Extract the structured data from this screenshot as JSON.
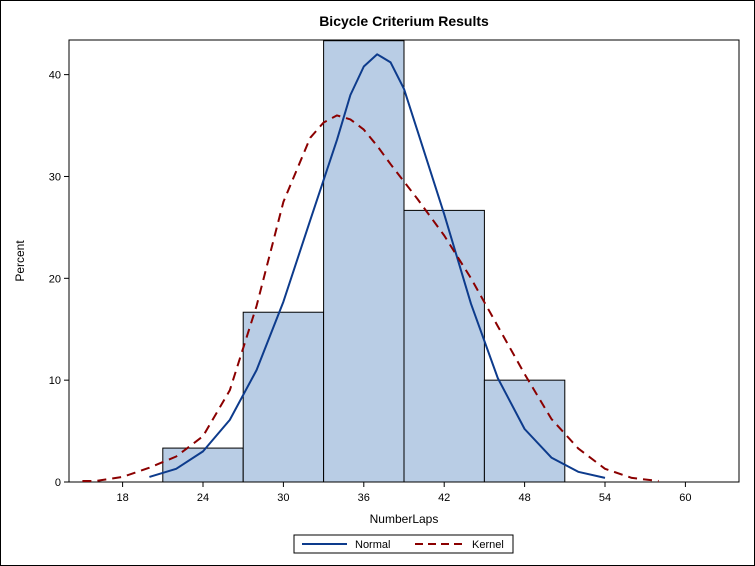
{
  "chart_data": {
    "type": "bar",
    "title": "Bicycle Criterium Results",
    "xlabel": "NumberLaps",
    "ylabel": "Percent",
    "xlim": [
      14,
      64
    ],
    "ylim": [
      0,
      43.4
    ],
    "x_ticks": [
      18,
      24,
      30,
      36,
      42,
      48,
      54,
      60
    ],
    "y_ticks": [
      0,
      10,
      20,
      30,
      40
    ],
    "bins": [
      {
        "x0": 21,
        "x1": 27,
        "value": 3.33
      },
      {
        "x0": 27,
        "x1": 33,
        "value": 16.67
      },
      {
        "x0": 33,
        "x1": 39,
        "value": 43.33
      },
      {
        "x0": 39,
        "x1": 45,
        "value": 26.67
      },
      {
        "x0": 45,
        "x1": 51,
        "value": 10.0
      }
    ],
    "bar_color": "#b9cde5",
    "series": [
      {
        "name": "Normal",
        "color": "#0d3b8c",
        "style": "solid",
        "x": [
          20,
          22,
          24,
          26,
          28,
          30,
          32,
          34,
          35,
          36,
          37,
          38,
          39,
          40,
          42,
          44,
          46,
          48,
          50,
          52,
          54
        ],
        "y": [
          0.5,
          1.3,
          3.0,
          6.1,
          11.0,
          17.7,
          25.7,
          33.6,
          38.0,
          40.8,
          42.0,
          41.2,
          38.6,
          34.5,
          26.3,
          17.5,
          10.2,
          5.2,
          2.4,
          1.0,
          0.4
        ]
      },
      {
        "name": "Kernel",
        "color": "#8b0000",
        "style": "dashed",
        "x": [
          15,
          16,
          18,
          20,
          22,
          24,
          26,
          28,
          30,
          32,
          33,
          34,
          35,
          36,
          37,
          38,
          40,
          42,
          44,
          46,
          48,
          50,
          52,
          54,
          56,
          58
        ],
        "y": [
          0.1,
          0.1,
          0.5,
          1.4,
          2.5,
          4.5,
          9.0,
          17.3,
          27.5,
          33.8,
          35.3,
          36.0,
          35.6,
          34.6,
          33.0,
          31.2,
          27.8,
          24.2,
          20.0,
          15.3,
          10.6,
          6.2,
          3.3,
          1.3,
          0.4,
          0.1
        ]
      }
    ],
    "legend": {
      "position": "bottom",
      "entries": [
        "Normal",
        "Kernel"
      ]
    }
  }
}
